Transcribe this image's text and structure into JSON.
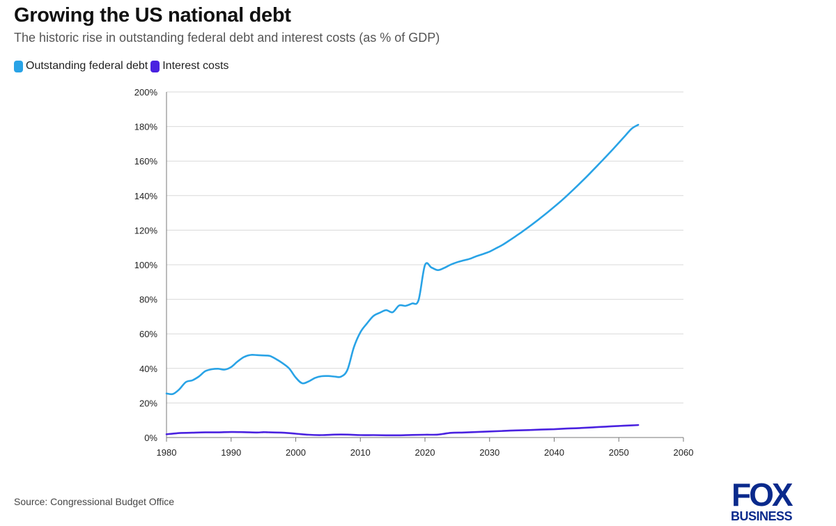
{
  "header": {
    "title": "Growing the US national debt",
    "subtitle": "The historic rise in outstanding federal debt and interest costs (as % of GDP)"
  },
  "footer": {
    "source": "Source: Congressional Budget Office"
  },
  "logo": {
    "line1": "FOX",
    "line2": "BUSINESS",
    "color": "#0a2a8c"
  },
  "chart_data": {
    "type": "line",
    "title": "Growing the US national debt",
    "xlabel": "",
    "ylabel": "",
    "xlim": [
      1980,
      2060
    ],
    "ylim": [
      0,
      200
    ],
    "x_ticks": [
      1980,
      1990,
      2000,
      2010,
      2020,
      2030,
      2040,
      2050,
      2060
    ],
    "y_ticks": [
      0,
      20,
      40,
      60,
      80,
      100,
      120,
      140,
      160,
      180,
      200
    ],
    "y_tick_labels": [
      "0%",
      "20%",
      "40%",
      "60%",
      "80%",
      "100%",
      "120%",
      "140%",
      "160%",
      "180%",
      "200%"
    ],
    "grid": "horizontal",
    "legend_position": "top-left",
    "series": [
      {
        "name": "Outstanding federal debt",
        "color": "#29a3e6",
        "x": [
          1980,
          1981,
          1982,
          1983,
          1984,
          1985,
          1986,
          1987,
          1988,
          1989,
          1990,
          1991,
          1992,
          1993,
          1994,
          1995,
          1996,
          1997,
          1998,
          1999,
          2000,
          2001,
          2002,
          2003,
          2004,
          2005,
          2006,
          2007,
          2008,
          2009,
          2010,
          2011,
          2012,
          2013,
          2014,
          2015,
          2016,
          2017,
          2018,
          2019,
          2020,
          2021,
          2022,
          2023,
          2024,
          2025,
          2026,
          2027,
          2028,
          2029,
          2030,
          2031,
          2032,
          2033,
          2034,
          2035,
          2036,
          2037,
          2038,
          2039,
          2040,
          2041,
          2042,
          2043,
          2044,
          2045,
          2046,
          2047,
          2048,
          2049,
          2050,
          2051,
          2052,
          2053
        ],
        "values": [
          25.5,
          25.2,
          28.0,
          32.1,
          33.1,
          35.3,
          38.4,
          39.5,
          39.8,
          39.3,
          40.8,
          44.0,
          46.6,
          47.8,
          47.7,
          47.5,
          47.2,
          45.3,
          42.9,
          39.9,
          34.7,
          31.4,
          32.5,
          34.5,
          35.5,
          35.6,
          35.3,
          35.2,
          39.2,
          52.3,
          60.9,
          65.9,
          70.3,
          72.2,
          73.7,
          72.5,
          76.4,
          76.2,
          77.6,
          79.4,
          99.8,
          98.4,
          96.9,
          98.2,
          100.1,
          101.5,
          102.5,
          103.5,
          105.0,
          106.2,
          107.6,
          109.5,
          111.5,
          113.9,
          116.4,
          119.0,
          121.7,
          124.5,
          127.4,
          130.4,
          133.5,
          136.7,
          140.1,
          143.6,
          147.2,
          150.9,
          154.7,
          158.6,
          162.5,
          166.5,
          170.6,
          174.7,
          178.8,
          181.0
        ]
      },
      {
        "name": "Interest costs",
        "color": "#4a22e0",
        "x": [
          1980,
          1982,
          1984,
          1986,
          1988,
          1990,
          1992,
          1994,
          1995,
          1996,
          1998,
          2000,
          2002,
          2004,
          2006,
          2008,
          2010,
          2012,
          2014,
          2016,
          2018,
          2020,
          2022,
          2024,
          2026,
          2028,
          2030,
          2032,
          2034,
          2036,
          2038,
          2040,
          2042,
          2044,
          2046,
          2048,
          2050,
          2052,
          2053
        ],
        "values": [
          1.9,
          2.6,
          2.8,
          3.0,
          3.0,
          3.2,
          3.1,
          2.9,
          3.1,
          3.0,
          2.8,
          2.2,
          1.6,
          1.4,
          1.7,
          1.7,
          1.4,
          1.4,
          1.3,
          1.3,
          1.5,
          1.6,
          1.7,
          2.7,
          2.9,
          3.2,
          3.5,
          3.8,
          4.1,
          4.3,
          4.6,
          4.8,
          5.2,
          5.5,
          5.9,
          6.3,
          6.7,
          7.0,
          7.2
        ]
      }
    ]
  }
}
